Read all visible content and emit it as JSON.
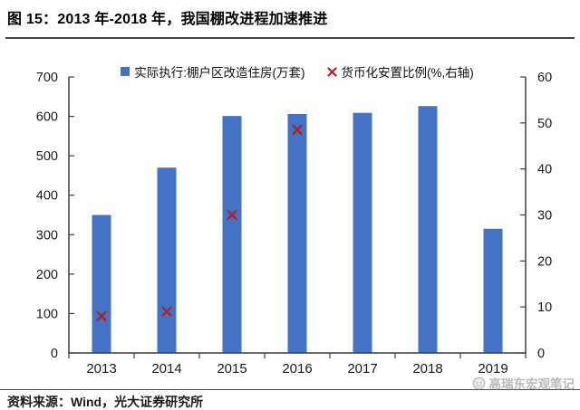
{
  "title": "图 15：2013 年-2018 年，我国棚改进程加速推进",
  "legend": {
    "bars": "实际执行:棚户区改造住房(万套)",
    "markers": "货币化安置比例(%,右轴)"
  },
  "chart_data": {
    "type": "combo",
    "categories": [
      "2013",
      "2014",
      "2015",
      "2016",
      "2017",
      "2018",
      "2019"
    ],
    "series": [
      {
        "name": "实际执行:棚户区改造住房(万套)",
        "type": "bar",
        "axis": "left",
        "values": [
          350,
          470,
          601,
          606,
          609,
          626,
          315
        ],
        "color": "#4472c4"
      },
      {
        "name": "货币化安置比例(%,右轴)",
        "type": "scatter_x",
        "axis": "right",
        "values": [
          8,
          9,
          30,
          48.5,
          null,
          null,
          null
        ],
        "color": "#a8222e"
      }
    ],
    "left_axis": {
      "min": 0,
      "max": 700,
      "step": 100
    },
    "right_axis": {
      "min": 0,
      "max": 60,
      "step": 10
    },
    "grid": false,
    "legend_position": "top"
  },
  "source_note": "资料来源：Wind，光大证券研究所",
  "watermark": "高瑞东宏观笔记",
  "colors": {
    "bar": "#4472c4",
    "marker": "#a8222e",
    "axis": "#3d3d3d",
    "text": "#1a1a1a",
    "watermark": "#b9b9b9"
  }
}
